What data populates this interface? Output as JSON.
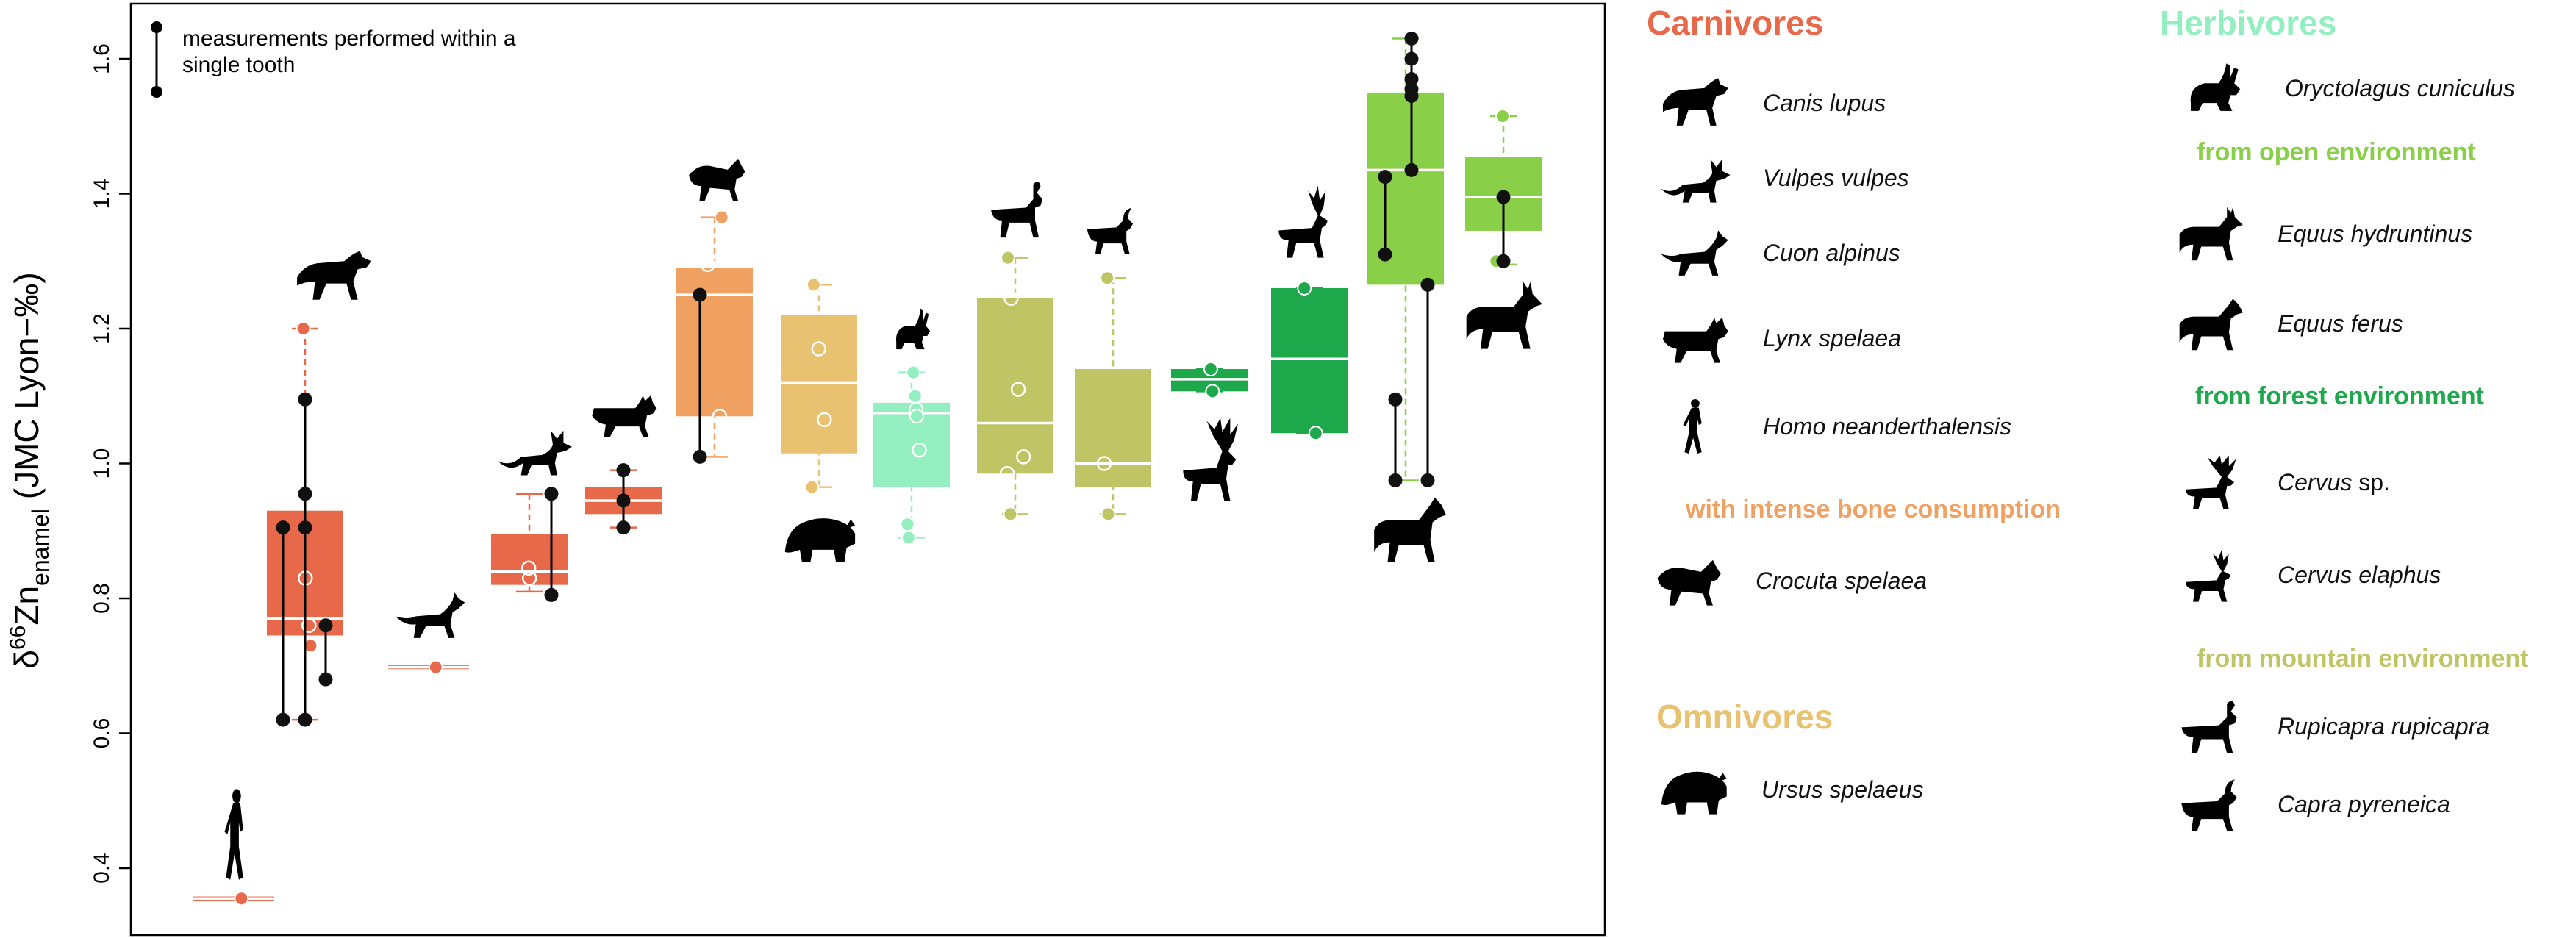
{
  "chart_data": {
    "type": "boxplot",
    "ylabel_main": "δ",
    "ylabel_sup": "66",
    "ylabel_zn": "Zn",
    "ylabel_sub": "enamel",
    "ylabel_tail": " (JMC Lyon−‰)",
    "ylim": [
      0.3,
      1.7
    ],
    "yticks": [
      "0.4",
      "0.6",
      "0.8",
      "1.0",
      "1.2",
      "1.4",
      "1.6"
    ],
    "grid": false,
    "inset_legend": {
      "line1": "measurements performed within a",
      "line2": "single tooth",
      "position": "top-left"
    },
    "boxes": [
      {
        "species": "Homo neanderthalensis",
        "color": "#E8694A",
        "whisker": [
          0.355,
          0.355
        ],
        "box": [
          0.352,
          0.358
        ],
        "median": 0.355,
        "icon": "human",
        "points": [
          {
            "y": 0.355,
            "style": "filled"
          }
        ]
      },
      {
        "species": "Canis lupus",
        "color": "#E8694A",
        "whisker": [
          0.62,
          1.2
        ],
        "box": [
          0.745,
          0.93
        ],
        "median": 0.77,
        "icon": "wolf",
        "points": [
          {
            "y": 1.2,
            "style": "filled"
          },
          {
            "y": 0.83,
            "style": "open"
          },
          {
            "y": 0.73,
            "style": "filled"
          },
          {
            "y": 0.76,
            "style": "open"
          }
        ]
      },
      {
        "species": "Cuon alpinus",
        "color": "#E8694A",
        "whisker": [
          0.698,
          0.698
        ],
        "box": [
          0.695,
          0.701
        ],
        "median": 0.698,
        "icon": "dhole",
        "points": [
          {
            "y": 0.698,
            "style": "filled"
          }
        ]
      },
      {
        "species": "Vulpes vulpes",
        "color": "#E8694A",
        "whisker": [
          0.81,
          0.955
        ],
        "box": [
          0.82,
          0.895
        ],
        "median": 0.84,
        "icon": "fox",
        "points": [
          {
            "y": 0.845,
            "style": "open"
          },
          {
            "y": 0.83,
            "style": "open"
          }
        ]
      },
      {
        "species": "Lynx spelaea",
        "color": "#E8694A",
        "whisker": [
          0.905,
          0.99
        ],
        "box": [
          0.925,
          0.965
        ],
        "median": 0.945,
        "icon": "lynx",
        "points": []
      },
      {
        "species": "Crocuta spelaea",
        "color": "#F0A060",
        "whisker": [
          1.01,
          1.365
        ],
        "box": [
          1.07,
          1.29
        ],
        "median": 1.25,
        "icon": "hyena",
        "points": [
          {
            "y": 1.365,
            "style": "filled"
          },
          {
            "y": 1.295,
            "style": "open"
          },
          {
            "y": 1.07,
            "style": "open"
          }
        ]
      },
      {
        "species": "Ursus spelaeus",
        "color": "#E8C270",
        "whisker": [
          0.965,
          1.265
        ],
        "box": [
          1.015,
          1.22
        ],
        "median": 1.12,
        "icon": "bear",
        "points": [
          {
            "y": 1.265,
            "style": "filled"
          },
          {
            "y": 1.17,
            "style": "open"
          },
          {
            "y": 1.065,
            "style": "open"
          },
          {
            "y": 0.965,
            "style": "filled"
          }
        ]
      },
      {
        "species": "Oryctolagus cuniculus",
        "color": "#94EFC0",
        "whisker": [
          0.89,
          1.135
        ],
        "box": [
          0.965,
          1.09
        ],
        "median": 1.075,
        "icon": "rabbit",
        "points": [
          {
            "y": 1.135,
            "style": "filled"
          },
          {
            "y": 1.1,
            "style": "filled"
          },
          {
            "y": 1.08,
            "style": "filled"
          },
          {
            "y": 1.07,
            "style": "filled"
          },
          {
            "y": 1.02,
            "style": "open"
          },
          {
            "y": 0.91,
            "style": "filled"
          },
          {
            "y": 0.89,
            "style": "filled"
          }
        ]
      },
      {
        "species": "Rupicapra rupicapra",
        "color": "#BFC464",
        "whisker": [
          0.925,
          1.305
        ],
        "box": [
          0.985,
          1.245
        ],
        "median": 1.06,
        "icon": "chamois",
        "points": [
          {
            "y": 1.305,
            "style": "filled"
          },
          {
            "y": 1.245,
            "style": "open"
          },
          {
            "y": 1.11,
            "style": "open"
          },
          {
            "y": 1.01,
            "style": "open"
          },
          {
            "y": 0.985,
            "style": "open"
          },
          {
            "y": 0.925,
            "style": "filled"
          }
        ]
      },
      {
        "species": "Capra pyreneica",
        "color": "#BFC464",
        "whisker": [
          0.925,
          1.275
        ],
        "box": [
          0.965,
          1.14
        ],
        "median": 1.0,
        "icon": "ibex",
        "points": [
          {
            "y": 1.275,
            "style": "filled"
          },
          {
            "y": 1.0,
            "style": "open"
          },
          {
            "y": 0.925,
            "style": "filled"
          }
        ]
      },
      {
        "species": "Cervus sp.",
        "color": "#1EA84C",
        "whisker": [
          1.107,
          1.14
        ],
        "box": [
          1.107,
          1.14
        ],
        "median": 1.125,
        "icon": "megaloceros",
        "points": [
          {
            "y": 1.14,
            "style": "filled"
          },
          {
            "y": 1.107,
            "style": "filled"
          }
        ]
      },
      {
        "species": "Cervus elaphus",
        "color": "#1EA84C",
        "whisker": [
          1.045,
          1.26
        ],
        "box": [
          1.045,
          1.26
        ],
        "median": 1.155,
        "icon": "deer",
        "points": [
          {
            "y": 1.26,
            "style": "filled"
          },
          {
            "y": 1.045,
            "style": "filled"
          }
        ]
      },
      {
        "species": "Equus ferus",
        "color": "#8ACF48",
        "whisker": [
          0.975,
          1.63
        ],
        "box": [
          1.265,
          1.55
        ],
        "median": 1.435,
        "icon": "horse",
        "points": []
      },
      {
        "species": "Equus hydruntinus",
        "color": "#8ACF48",
        "whisker": [
          1.295,
          1.515
        ],
        "box": [
          1.345,
          1.455
        ],
        "median": 1.395,
        "icon": "ass",
        "points": [
          {
            "y": 1.515,
            "style": "filled"
          },
          {
            "y": 1.3,
            "style": "filled"
          }
        ]
      }
    ],
    "tooth_series": [
      {
        "box": 1,
        "dx": 0,
        "values": [
          1.095,
          0.955,
          0.905,
          0.62
        ]
      },
      {
        "box": 1,
        "dx": 28,
        "values": [
          0.76,
          0.68
        ]
      },
      {
        "box": 1,
        "dx": -30,
        "values": [
          0.905,
          0.62
        ]
      },
      {
        "box": 3,
        "dx": 30,
        "values": [
          0.955,
          0.805
        ]
      },
      {
        "box": 4,
        "dx": 0,
        "values": [
          0.99,
          0.945,
          0.905
        ]
      },
      {
        "box": 5,
        "dx": -20,
        "values": [
          1.25,
          1.01
        ]
      },
      {
        "box": 12,
        "dx": 8,
        "values": [
          1.63,
          1.6,
          1.57,
          1.555,
          1.545,
          1.435
        ]
      },
      {
        "box": 12,
        "dx": -28,
        "values": [
          1.425,
          1.31
        ]
      },
      {
        "box": 12,
        "dx": -14,
        "values": [
          1.095,
          0.975
        ]
      },
      {
        "box": 12,
        "dx": 30,
        "values": [
          1.265,
          0.975
        ]
      },
      {
        "box": 13,
        "dx": 0,
        "values": [
          1.395,
          1.3
        ]
      }
    ]
  },
  "legend": {
    "carnivores": {
      "title": "Carnivores",
      "color": "#E8694A",
      "species": [
        {
          "name": "Canis lupus",
          "icon": "wolf-icon"
        },
        {
          "name": "Vulpes vulpes",
          "icon": "fox-icon"
        },
        {
          "name": "Cuon alpinus",
          "icon": "dhole-icon"
        },
        {
          "name": "Lynx spelaea",
          "icon": "lynx-icon"
        },
        {
          "name": "Homo neanderthalensis",
          "icon": "human-icon"
        }
      ],
      "subgroup": "with intense bone consumption",
      "subgroup_color": "#F0A060",
      "sub_species": [
        {
          "name": "Crocuta spelaea",
          "icon": "hyena-icon"
        }
      ]
    },
    "omnivores": {
      "title": "Omnivores",
      "color": "#E8C270",
      "species": [
        {
          "name": "Ursus spelaeus",
          "icon": "bear-icon"
        }
      ]
    },
    "herbivores": {
      "title": "Herbivores",
      "color": "#94EFC0",
      "species": [
        {
          "name": "Oryctolagus cuniculus",
          "icon": "rabbit-icon"
        }
      ],
      "open_env": {
        "label": "from open environment",
        "color": "#8ACF48",
        "species": [
          {
            "name": "Equus hydruntinus",
            "icon": "ass-icon"
          },
          {
            "name": "Equus ferus",
            "icon": "horse-icon"
          }
        ]
      },
      "forest_env": {
        "label": "from forest environment",
        "color": "#1EA84C",
        "species": [
          {
            "name_italic": "Cervus",
            "name_plain": " sp.",
            "icon": "megaloceros-icon"
          },
          {
            "name": "Cervus elaphus",
            "icon": "deer-icon"
          }
        ]
      },
      "mountain_env": {
        "label": "from mountain environment",
        "color": "#BFC464",
        "species": [
          {
            "name": "Rupicapra rupicapra",
            "icon": "chamois-icon"
          },
          {
            "name": "Capra pyreneica",
            "icon": "ibex-icon"
          }
        ]
      }
    }
  }
}
